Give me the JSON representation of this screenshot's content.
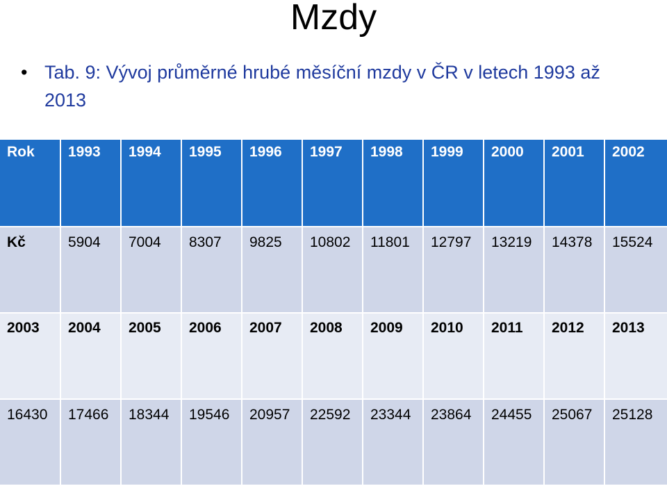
{
  "title": "Mzdy",
  "bullet": "Tab. 9: Vývoj průměrné hrubé měsíční mzdy v ČR v letech 1993 až 2013",
  "table": {
    "header": [
      "Rok",
      "1993",
      "1994",
      "1995",
      "1996",
      "1997",
      "1998",
      "1999",
      "2000",
      "2001",
      "2002"
    ],
    "row_kc": [
      "Kč",
      "5904",
      "7004",
      "8307",
      "9825",
      "10802",
      "11801",
      "12797",
      "13219",
      "14378",
      "15524"
    ],
    "row_years": [
      "2003",
      "2004",
      "2005",
      "2006",
      "2007",
      "2008",
      "2009",
      "2010",
      "2011",
      "2012",
      "2013"
    ],
    "row_values": [
      "16430",
      "17466",
      "18344",
      "19546",
      "20957",
      "22592",
      "23344",
      "23864",
      "24455",
      "25067",
      "25128"
    ]
  }
}
